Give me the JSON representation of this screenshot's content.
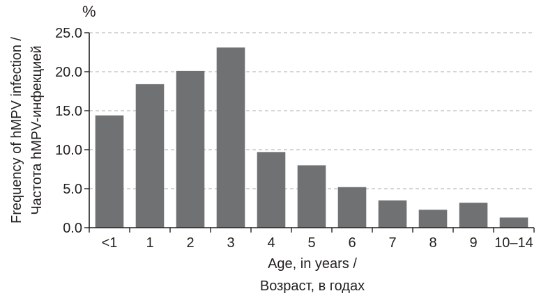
{
  "chart_data": {
    "type": "bar",
    "unit_label": "%",
    "categories": [
      "<1",
      "1",
      "2",
      "3",
      "4",
      "5",
      "6",
      "7",
      "8",
      "9",
      "10–14"
    ],
    "values": [
      14.4,
      18.4,
      20.1,
      23.1,
      9.7,
      8.0,
      5.2,
      3.5,
      2.3,
      3.2,
      1.3
    ],
    "ylabel_line1": "Frequency of hMPV infection /",
    "ylabel_line2": "Частота hMPV-инфекцией",
    "xlabel_line1": "Age, in years /",
    "xlabel_line2": "Возраст, в годах",
    "ylim": [
      0,
      25
    ],
    "yticks": [
      "0.0",
      "5.0",
      "10.0",
      "15.0",
      "20.0",
      "25.0"
    ],
    "grid": true,
    "bar_color": "#707173",
    "grid_color": "#bdbdbd",
    "axis_color": "#231f20"
  }
}
